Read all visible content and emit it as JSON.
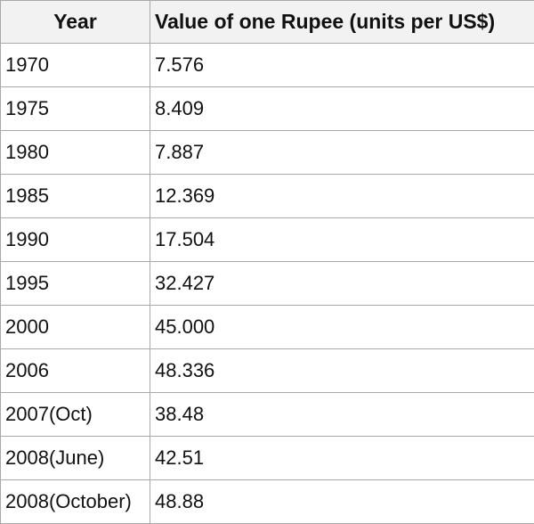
{
  "chart_data": {
    "type": "table",
    "columns": [
      "Year",
      "Value of one Rupee (units per US$)"
    ],
    "rows": [
      [
        "1970",
        "7.576"
      ],
      [
        "1975",
        "8.409"
      ],
      [
        "1980",
        "7.887"
      ],
      [
        "1985",
        "12.369"
      ],
      [
        "1990",
        "17.504"
      ],
      [
        "1995",
        "32.427"
      ],
      [
        "2000",
        "45.000"
      ],
      [
        "2006",
        "48.336"
      ],
      [
        "2007(Oct)",
        "38.48"
      ],
      [
        "2008(June)",
        "42.51"
      ],
      [
        "2008(October)",
        "48.88"
      ]
    ]
  },
  "colors": {
    "header_background": "#f2f2f2",
    "grid_line": "#a9a9a9",
    "text": "#111111"
  }
}
